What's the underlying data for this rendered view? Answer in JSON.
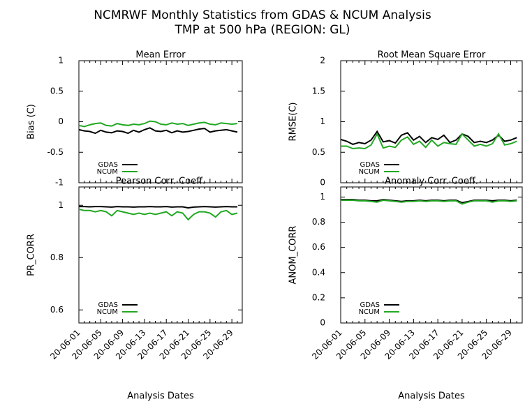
{
  "title": "NCMRWF Monthly Statistics from GDAS & NCUM Analysis",
  "subtitle": "TMP at 500 hPa (REGION: GL)",
  "chart_data": [
    {
      "type": "line",
      "title": "Mean Error",
      "y_label": "Bias (C)",
      "ylim": [
        -1,
        1
      ],
      "yticks": [
        -1,
        -0.5,
        0,
        0.5,
        1
      ],
      "legend": "lower-left",
      "series": [
        {
          "name": "GDAS",
          "color": "#000000",
          "values": [
            -0.13,
            -0.15,
            -0.16,
            -0.19,
            -0.14,
            -0.17,
            -0.18,
            -0.15,
            -0.16,
            -0.19,
            -0.14,
            -0.17,
            -0.13,
            -0.1,
            -0.15,
            -0.16,
            -0.14,
            -0.18,
            -0.15,
            -0.17,
            -0.16,
            -0.14,
            -0.12,
            -0.11,
            -0.17,
            -0.15,
            -0.14,
            -0.13,
            -0.15,
            -0.17
          ]
        },
        {
          "name": "NCUM",
          "color": "#22a822",
          "values": [
            -0.06,
            -0.08,
            -0.05,
            -0.03,
            -0.02,
            -0.06,
            -0.07,
            -0.03,
            -0.05,
            -0.06,
            -0.04,
            -0.05,
            -0.03,
            0.01,
            0.0,
            -0.04,
            -0.05,
            -0.02,
            -0.04,
            -0.03,
            -0.06,
            -0.04,
            -0.02,
            -0.01,
            -0.04,
            -0.05,
            -0.02,
            -0.03,
            -0.04,
            -0.03
          ]
        }
      ]
    },
    {
      "type": "line",
      "title": "Root Mean Square Error",
      "y_label": "RMSE(C)",
      "ylim": [
        0,
        2
      ],
      "yticks": [
        0,
        0.5,
        1,
        1.5,
        2
      ],
      "legend": "lower-left",
      "series": [
        {
          "name": "GDAS",
          "color": "#000000",
          "values": [
            0.71,
            0.68,
            0.63,
            0.66,
            0.64,
            0.7,
            0.84,
            0.67,
            0.69,
            0.65,
            0.78,
            0.82,
            0.7,
            0.76,
            0.66,
            0.74,
            0.71,
            0.78,
            0.66,
            0.7,
            0.8,
            0.76,
            0.66,
            0.68,
            0.66,
            0.7,
            0.78,
            0.68,
            0.7,
            0.74
          ]
        },
        {
          "name": "NCUM",
          "color": "#22a822",
          "values": [
            0.6,
            0.6,
            0.56,
            0.57,
            0.56,
            0.62,
            0.8,
            0.57,
            0.6,
            0.58,
            0.7,
            0.75,
            0.63,
            0.68,
            0.58,
            0.7,
            0.6,
            0.66,
            0.64,
            0.63,
            0.8,
            0.7,
            0.6,
            0.63,
            0.6,
            0.64,
            0.8,
            0.62,
            0.64,
            0.68
          ]
        }
      ]
    },
    {
      "type": "line",
      "title": "Pearson Corr. Coeff.",
      "y_label": "PR_CORR",
      "x_label": "Analysis Dates",
      "categories": [
        "20-06-01",
        null,
        null,
        null,
        "20-06-05",
        null,
        null,
        null,
        "20-06-09",
        null,
        null,
        null,
        "20-06-13",
        null,
        null,
        null,
        "20-06-17",
        null,
        null,
        null,
        "20-06-21",
        null,
        null,
        null,
        "20-06-25",
        null,
        null,
        null,
        "20-06-29",
        null
      ],
      "ylim": [
        0.55,
        1.07
      ],
      "yticks": [
        0.6,
        0.8,
        1
      ],
      "legend": "lower-left",
      "series": [
        {
          "name": "GDAS",
          "color": "#000000",
          "values": [
            0.995,
            0.995,
            0.994,
            0.995,
            0.995,
            0.994,
            0.993,
            0.995,
            0.994,
            0.994,
            0.993,
            0.994,
            0.994,
            0.995,
            0.994,
            0.994,
            0.995,
            0.993,
            0.994,
            0.994,
            0.99,
            0.993,
            0.994,
            0.995,
            0.994,
            0.993,
            0.994,
            0.995,
            0.994,
            0.994
          ]
        },
        {
          "name": "NCUM",
          "color": "#22a822",
          "values": [
            0.985,
            0.98,
            0.98,
            0.975,
            0.98,
            0.975,
            0.96,
            0.98,
            0.975,
            0.97,
            0.965,
            0.97,
            0.965,
            0.97,
            0.965,
            0.97,
            0.975,
            0.96,
            0.975,
            0.97,
            0.945,
            0.965,
            0.975,
            0.975,
            0.97,
            0.955,
            0.975,
            0.98,
            0.965,
            0.97
          ]
        }
      ]
    },
    {
      "type": "line",
      "title": "Anomaly Corr. Coeff.",
      "y_label": "ANOM_CORR",
      "x_label": "Analysis Dates",
      "categories": [
        "20-06-01",
        null,
        null,
        null,
        "20-06-05",
        null,
        null,
        null,
        "20-06-09",
        null,
        null,
        null,
        "20-06-13",
        null,
        null,
        null,
        "20-06-17",
        null,
        null,
        null,
        "20-06-21",
        null,
        null,
        null,
        "20-06-25",
        null,
        null,
        null,
        "20-06-29",
        null
      ],
      "ylim": [
        0,
        1.08
      ],
      "yticks": [
        0,
        0.2,
        0.4,
        0.6,
        0.8,
        1
      ],
      "legend": "lower-left",
      "series": [
        {
          "name": "GDAS",
          "color": "#000000",
          "values": [
            0.98,
            0.98,
            0.98,
            0.975,
            0.975,
            0.97,
            0.97,
            0.98,
            0.975,
            0.97,
            0.965,
            0.97,
            0.97,
            0.975,
            0.97,
            0.975,
            0.975,
            0.97,
            0.975,
            0.975,
            0.955,
            0.965,
            0.975,
            0.975,
            0.975,
            0.97,
            0.975,
            0.975,
            0.97,
            0.975
          ]
        },
        {
          "name": "NCUM",
          "color": "#22a822",
          "values": [
            0.975,
            0.975,
            0.975,
            0.97,
            0.97,
            0.965,
            0.96,
            0.975,
            0.97,
            0.965,
            0.96,
            0.965,
            0.965,
            0.97,
            0.965,
            0.97,
            0.97,
            0.965,
            0.97,
            0.97,
            0.945,
            0.96,
            0.97,
            0.97,
            0.97,
            0.96,
            0.97,
            0.97,
            0.965,
            0.97
          ]
        }
      ]
    }
  ]
}
